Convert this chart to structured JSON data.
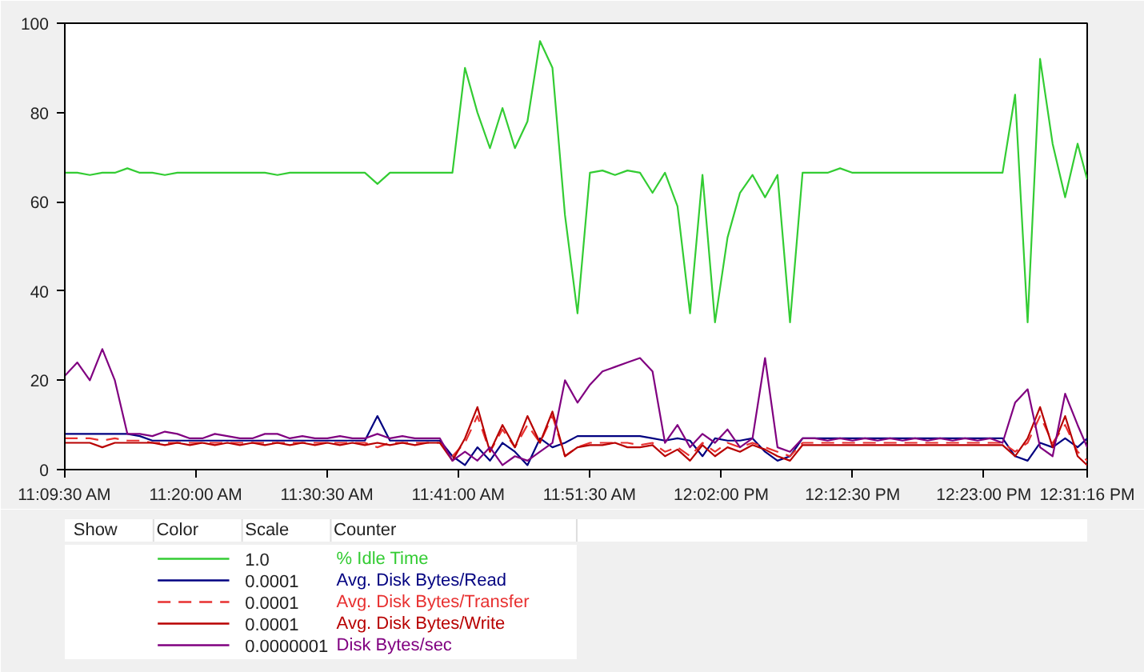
{
  "chart_data": {
    "type": "line",
    "x": [
      11.1583,
      11.175,
      11.1917,
      11.2083,
      11.225,
      11.2417,
      11.2583,
      11.275,
      11.2917,
      11.3083,
      11.325,
      11.3417,
      11.3583,
      11.375,
      11.3917,
      11.4083,
      11.425,
      11.4417,
      11.4583,
      11.475,
      11.4917,
      11.5083,
      11.525,
      11.5417,
      11.5583,
      11.575,
      11.5917,
      11.6083,
      11.625,
      11.6417,
      11.6583,
      11.675,
      11.6917,
      11.7083,
      11.725,
      11.7417,
      11.7583,
      11.775,
      11.7917,
      11.8083,
      11.825,
      11.8417,
      11.8583,
      11.875,
      11.8917,
      11.9083,
      11.925,
      11.9417,
      11.9583,
      11.975,
      11.9917,
      12.0083,
      12.025,
      12.0417,
      12.0583,
      12.075,
      12.0917,
      12.1083,
      12.125,
      12.1417,
      12.1583,
      12.175,
      12.1917,
      12.2083,
      12.225,
      12.2417,
      12.2583,
      12.275,
      12.2917,
      12.3083,
      12.325,
      12.3417,
      12.3583,
      12.375,
      12.3917,
      12.4083,
      12.425,
      12.4417,
      12.4583,
      12.475,
      12.4917,
      12.5083,
      12.5211
    ],
    "series": [
      {
        "name": "% Idle Time",
        "color": "#33cc33",
        "line_style": "solid",
        "values": [
          66.5,
          66.5,
          66,
          66.5,
          66.5,
          67.5,
          66.5,
          66.5,
          66,
          66.5,
          66.5,
          66.5,
          66.5,
          66.5,
          66.5,
          66.5,
          66.5,
          66,
          66.5,
          66.5,
          66.5,
          66.5,
          66.5,
          66.5,
          66.5,
          64,
          66.5,
          66.5,
          66.5,
          66.5,
          66.5,
          66.5,
          90,
          80,
          72,
          81,
          72,
          78,
          96,
          90,
          57,
          35,
          66.5,
          67,
          66,
          67,
          66.5,
          62,
          66.5,
          59,
          35,
          66,
          33,
          52,
          62,
          66,
          61,
          66,
          33,
          66.5,
          66.5,
          66.5,
          67.5,
          66.5,
          66.5,
          66.5,
          66.5,
          66.5,
          66.5,
          66.5,
          66.5,
          66.5,
          66.5,
          66.5,
          66.5,
          66.5,
          84,
          33,
          92,
          73,
          61,
          73,
          65
        ]
      },
      {
        "name": "Avg. Disk Bytes/Read",
        "color": "#000080",
        "line_style": "solid",
        "values": [
          8,
          8,
          8,
          8,
          8,
          8,
          7.5,
          6.5,
          6.5,
          6.5,
          6.5,
          6.5,
          6.5,
          6.5,
          6.5,
          6.5,
          6.5,
          6.5,
          6.5,
          6.5,
          6.5,
          6.5,
          6.5,
          6.5,
          6.5,
          12,
          6.5,
          6.5,
          6.5,
          6.5,
          6.5,
          3,
          1,
          5,
          2,
          6,
          4,
          1,
          7,
          5,
          6,
          7.5,
          7.5,
          7.5,
          7.5,
          7.5,
          7.5,
          7,
          6.5,
          7,
          6.5,
          3,
          7,
          6.5,
          6.5,
          7,
          4,
          2,
          3,
          7,
          7,
          7,
          7,
          7,
          7,
          7,
          7,
          7,
          7,
          7,
          7,
          7,
          7,
          7,
          7,
          7,
          3,
          2,
          6,
          5,
          7,
          5,
          7
        ]
      },
      {
        "name": "Avg. Disk Bytes/Transfer",
        "color": "#e83030",
        "line_style": "dashed",
        "values": [
          7,
          7,
          7,
          6.5,
          7,
          6.5,
          6.5,
          6,
          6,
          6,
          6,
          6,
          6,
          6,
          6,
          6,
          6,
          6,
          6,
          6,
          6,
          6,
          6,
          6,
          6,
          5,
          6,
          6,
          6,
          6,
          6,
          3,
          6,
          12,
          4,
          9,
          5,
          10,
          6,
          12,
          3,
          5,
          6,
          6,
          6,
          6,
          5.5,
          6,
          4,
          5,
          3,
          6,
          4,
          6,
          5,
          6,
          5,
          4,
          3,
          6,
          6,
          6,
          6,
          6,
          6,
          6,
          6,
          6,
          6,
          6,
          6,
          6,
          6,
          6,
          6,
          6,
          4,
          6,
          12,
          6,
          10,
          4,
          2
        ]
      },
      {
        "name": "Avg. Disk Bytes/Write",
        "color": "#b80000",
        "line_style": "solid",
        "values": [
          6,
          6,
          6,
          5,
          6,
          6,
          6,
          6,
          5.5,
          6,
          5.5,
          6,
          5.5,
          6,
          5.5,
          6,
          5.5,
          6,
          5.5,
          6,
          5.5,
          6,
          5.5,
          6,
          5.5,
          6,
          5.5,
          6,
          5.5,
          6,
          6,
          2,
          7,
          14,
          4,
          10,
          5,
          12,
          6,
          13,
          3,
          5,
          5.5,
          5.5,
          6,
          5,
          5,
          5.5,
          3,
          4.5,
          2,
          5.5,
          3,
          5,
          4,
          5.5,
          4.5,
          3,
          2,
          5.5,
          5.5,
          5.5,
          5.5,
          5.5,
          5.5,
          5.5,
          5.5,
          5.5,
          5.5,
          5.5,
          5.5,
          5.5,
          5.5,
          5.5,
          5.5,
          5.5,
          3,
          7,
          14,
          5,
          12,
          3,
          1
        ]
      },
      {
        "name": "Disk Bytes/sec",
        "color": "#800080",
        "line_style": "solid",
        "values": [
          21,
          24,
          20,
          27,
          20,
          8,
          8,
          7.5,
          8.5,
          8,
          7,
          7,
          8,
          7.5,
          7,
          7,
          8,
          8,
          7,
          7.5,
          7,
          7,
          7.5,
          7,
          7,
          8,
          7,
          7.5,
          7,
          7,
          7,
          2,
          4,
          2,
          5,
          1,
          3,
          2,
          4,
          6,
          20,
          15,
          19,
          22,
          23,
          24,
          25,
          22,
          6,
          10,
          5,
          8,
          6,
          9,
          5,
          7,
          25,
          5,
          4,
          7,
          7,
          6.5,
          7,
          6.5,
          7,
          6.5,
          7,
          6.5,
          7,
          6.5,
          7,
          6.5,
          7,
          6.5,
          7,
          6,
          15,
          18,
          5,
          3,
          17,
          10,
          5
        ]
      }
    ],
    "xlim": [
      11.1583,
      12.5211
    ],
    "xticks": [
      {
        "value": 11.1583,
        "label": "11:09:30 AM"
      },
      {
        "value": 11.333333,
        "label": "11:20:00 AM"
      },
      {
        "value": 11.508333,
        "label": "11:30:30 AM"
      },
      {
        "value": 11.683333,
        "label": "11:41:00 AM"
      },
      {
        "value": 11.858333,
        "label": "11:51:30 AM"
      },
      {
        "value": 12.033333,
        "label": "12:02:00 PM"
      },
      {
        "value": 12.208333,
        "label": "12:12:30 PM"
      },
      {
        "value": 12.383333,
        "label": "12:23:00 PM"
      },
      {
        "value": 12.5211,
        "label": "12:31:16 PM"
      }
    ],
    "ylim": [
      0,
      100
    ],
    "yticks": [
      0,
      20,
      40,
      60,
      80,
      100
    ],
    "grid": false,
    "legend": "bottom",
    "annotations": [
      "Show",
      "Color",
      "Scale",
      "Counter",
      "1.0",
      "0.0001",
      "0.0001",
      "0.0001",
      "0.0000001"
    ]
  }
}
